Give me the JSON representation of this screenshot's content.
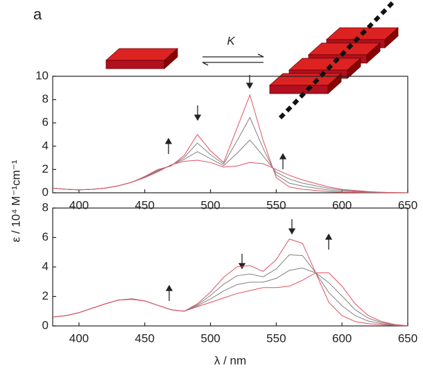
{
  "panel_label": "a",
  "equilibrium_label": "K",
  "chart_data": [
    {
      "type": "line",
      "ylabel": "ε / 10⁴ M⁻¹cm⁻¹",
      "x": [
        380,
        390,
        400,
        410,
        420,
        430,
        440,
        450,
        460,
        470,
        480,
        490,
        500,
        510,
        520,
        530,
        540,
        550,
        560,
        570,
        580,
        590,
        600,
        610,
        620,
        630,
        640,
        650
      ],
      "series": [
        {
          "color": "#e05060",
          "values": [
            0.4,
            0.3,
            0.25,
            0.3,
            0.4,
            0.6,
            0.9,
            1.4,
            2.0,
            2.3,
            3.2,
            5.0,
            3.6,
            2.6,
            5.5,
            8.4,
            4.5,
            1.3,
            0.5,
            0.3,
            0.2,
            0.1,
            0.05,
            0.03,
            0.02,
            0.01,
            0,
            0
          ]
        },
        {
          "color": "#808080",
          "values": [
            0.4,
            0.3,
            0.25,
            0.3,
            0.4,
            0.6,
            0.9,
            1.37,
            1.93,
            2.33,
            3.03,
            4.27,
            3.27,
            2.47,
            4.43,
            6.47,
            3.83,
            1.53,
            0.83,
            0.57,
            0.4,
            0.23,
            0.13,
            0.09,
            0.05,
            0.02,
            0.01,
            0
          ]
        },
        {
          "color": "#808080",
          "values": [
            0.4,
            0.3,
            0.25,
            0.3,
            0.4,
            0.6,
            0.9,
            1.33,
            1.87,
            2.37,
            2.87,
            3.53,
            2.93,
            2.33,
            3.37,
            4.53,
            3.17,
            1.77,
            1.17,
            0.83,
            0.6,
            0.37,
            0.22,
            0.14,
            0.07,
            0.04,
            0.01,
            0
          ]
        },
        {
          "color": "#e05060",
          "values": [
            0.4,
            0.3,
            0.25,
            0.3,
            0.4,
            0.6,
            0.9,
            1.3,
            1.8,
            2.4,
            2.7,
            2.8,
            2.6,
            2.2,
            2.3,
            2.6,
            2.5,
            2.0,
            1.5,
            1.1,
            0.8,
            0.5,
            0.3,
            0.2,
            0.1,
            0.05,
            0.02,
            0
          ]
        }
      ],
      "xlim": [
        380,
        650
      ],
      "ylim": [
        0,
        10
      ],
      "xticks": [
        400,
        450,
        500,
        550,
        600,
        650
      ],
      "yticks": [
        0,
        2,
        4,
        6,
        8,
        10
      ]
    },
    {
      "type": "line",
      "xlabel": "λ / nm",
      "x": [
        380,
        390,
        400,
        410,
        420,
        430,
        440,
        450,
        460,
        470,
        480,
        490,
        500,
        510,
        520,
        530,
        540,
        550,
        560,
        570,
        580,
        590,
        600,
        610,
        620,
        630,
        640,
        650
      ],
      "series": [
        {
          "color": "#e05060",
          "values": [
            0.6,
            0.7,
            0.9,
            1.2,
            1.5,
            1.75,
            1.85,
            1.7,
            1.4,
            1.1,
            1.0,
            1.5,
            2.3,
            3.3,
            4.0,
            4.1,
            3.7,
            4.5,
            5.9,
            5.6,
            3.6,
            1.6,
            0.7,
            0.3,
            0.15,
            0.08,
            0.03,
            0
          ]
        },
        {
          "color": "#808080",
          "values": [
            0.6,
            0.7,
            0.9,
            1.2,
            1.5,
            1.75,
            1.83,
            1.7,
            1.4,
            1.1,
            1.0,
            1.43,
            2.07,
            2.83,
            3.4,
            3.53,
            3.33,
            3.87,
            4.83,
            4.77,
            3.6,
            2.27,
            1.37,
            0.7,
            0.33,
            0.15,
            0.05,
            0.01
          ]
        },
        {
          "color": "#808080",
          "values": [
            0.6,
            0.7,
            0.9,
            1.2,
            1.5,
            1.75,
            1.82,
            1.7,
            1.4,
            1.1,
            1.0,
            1.37,
            1.83,
            2.37,
            2.8,
            2.97,
            2.97,
            3.23,
            3.77,
            3.93,
            3.6,
            2.93,
            2.03,
            1.1,
            0.52,
            0.23,
            0.08,
            0.01
          ]
        },
        {
          "color": "#e05060",
          "values": [
            0.6,
            0.7,
            0.9,
            1.2,
            1.5,
            1.75,
            1.8,
            1.7,
            1.4,
            1.1,
            1.0,
            1.3,
            1.6,
            1.9,
            2.2,
            2.4,
            2.6,
            2.6,
            2.7,
            3.1,
            3.6,
            3.6,
            2.7,
            1.5,
            0.7,
            0.3,
            0.1,
            0.02
          ]
        }
      ],
      "xlim": [
        380,
        650
      ],
      "ylim": [
        0,
        8
      ],
      "xticks": [
        400,
        450,
        500,
        550,
        600,
        650
      ],
      "yticks": [
        0,
        2,
        4,
        6,
        8
      ]
    }
  ]
}
